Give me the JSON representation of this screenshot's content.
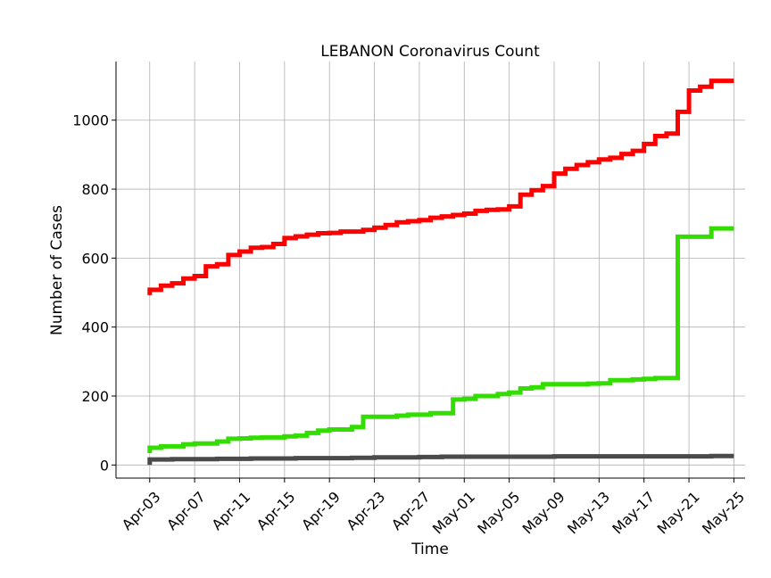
{
  "chart_data": {
    "type": "line",
    "title": "LEBANON Coronavirus Count",
    "xlabel": "Time",
    "ylabel": "Number of Cases",
    "x_tick_labels": [
      "Apr-03",
      "Apr-07",
      "Apr-11",
      "Apr-15",
      "Apr-19",
      "Apr-23",
      "Apr-27",
      "May-01",
      "May-05",
      "May-09",
      "May-13",
      "May-17",
      "May-21",
      "May-25"
    ],
    "y_ticks": [
      0,
      200,
      400,
      600,
      800,
      1000
    ],
    "x_range": [
      "2020-03-31",
      "2020-05-26"
    ],
    "ylim": [
      -38,
      1170
    ],
    "grid": true,
    "x": [
      "2020-04-03",
      "2020-04-04",
      "2020-04-05",
      "2020-04-06",
      "2020-04-07",
      "2020-04-08",
      "2020-04-09",
      "2020-04-10",
      "2020-04-11",
      "2020-04-12",
      "2020-04-13",
      "2020-04-14",
      "2020-04-15",
      "2020-04-16",
      "2020-04-17",
      "2020-04-18",
      "2020-04-19",
      "2020-04-20",
      "2020-04-21",
      "2020-04-22",
      "2020-04-23",
      "2020-04-24",
      "2020-04-25",
      "2020-04-26",
      "2020-04-27",
      "2020-04-28",
      "2020-04-29",
      "2020-04-30",
      "2020-05-01",
      "2020-05-02",
      "2020-05-03",
      "2020-05-04",
      "2020-05-05",
      "2020-05-06",
      "2020-05-07",
      "2020-05-08",
      "2020-05-09",
      "2020-05-10",
      "2020-05-11",
      "2020-05-12",
      "2020-05-13",
      "2020-05-14",
      "2020-05-15",
      "2020-05-16",
      "2020-05-17",
      "2020-05-18",
      "2020-05-19",
      "2020-05-20",
      "2020-05-21",
      "2020-05-22",
      "2020-05-23",
      "2020-05-24",
      "2020-05-25"
    ],
    "series": [
      {
        "color": "#ff0000",
        "values": [
          508,
          520,
          527,
          541,
          548,
          576,
          582,
          609,
          619,
          630,
          632,
          641,
          658,
          663,
          668,
          672,
          673,
          677,
          677,
          682,
          688,
          696,
          704,
          707,
          710,
          717,
          721,
          725,
          729,
          737,
          740,
          741,
          750,
          784,
          797,
          809,
          845,
          859,
          870,
          878,
          886,
          891,
          902,
          911,
          931,
          954,
          961,
          1024,
          1086,
          1097,
          1114,
          1114,
          1114
        ]
      },
      {
        "color": "#33dd00",
        "values": [
          50,
          54,
          54,
          60,
          62,
          62,
          68,
          76,
          77,
          79,
          80,
          80,
          83,
          85,
          93,
          100,
          103,
          103,
          110,
          140,
          140,
          140,
          143,
          146,
          146,
          150,
          150,
          190,
          192,
          200,
          200,
          206,
          210,
          222,
          225,
          234,
          234,
          234,
          234,
          236,
          237,
          246,
          246,
          248,
          250,
          252,
          252,
          662,
          662,
          662,
          686,
          686,
          686
        ]
      },
      {
        "color": "#4a4a4a",
        "values": [
          16,
          16,
          17,
          17,
          17,
          17,
          18,
          18,
          18,
          19,
          19,
          19,
          19,
          20,
          20,
          20,
          20,
          20,
          21,
          21,
          22,
          22,
          22,
          22,
          23,
          23,
          24,
          24,
          24,
          24,
          24,
          24,
          24,
          24,
          24,
          24,
          25,
          25,
          25,
          25,
          25,
          25,
          25,
          25,
          25,
          25,
          25,
          25,
          25,
          25,
          26,
          26,
          26
        ]
      }
    ]
  }
}
